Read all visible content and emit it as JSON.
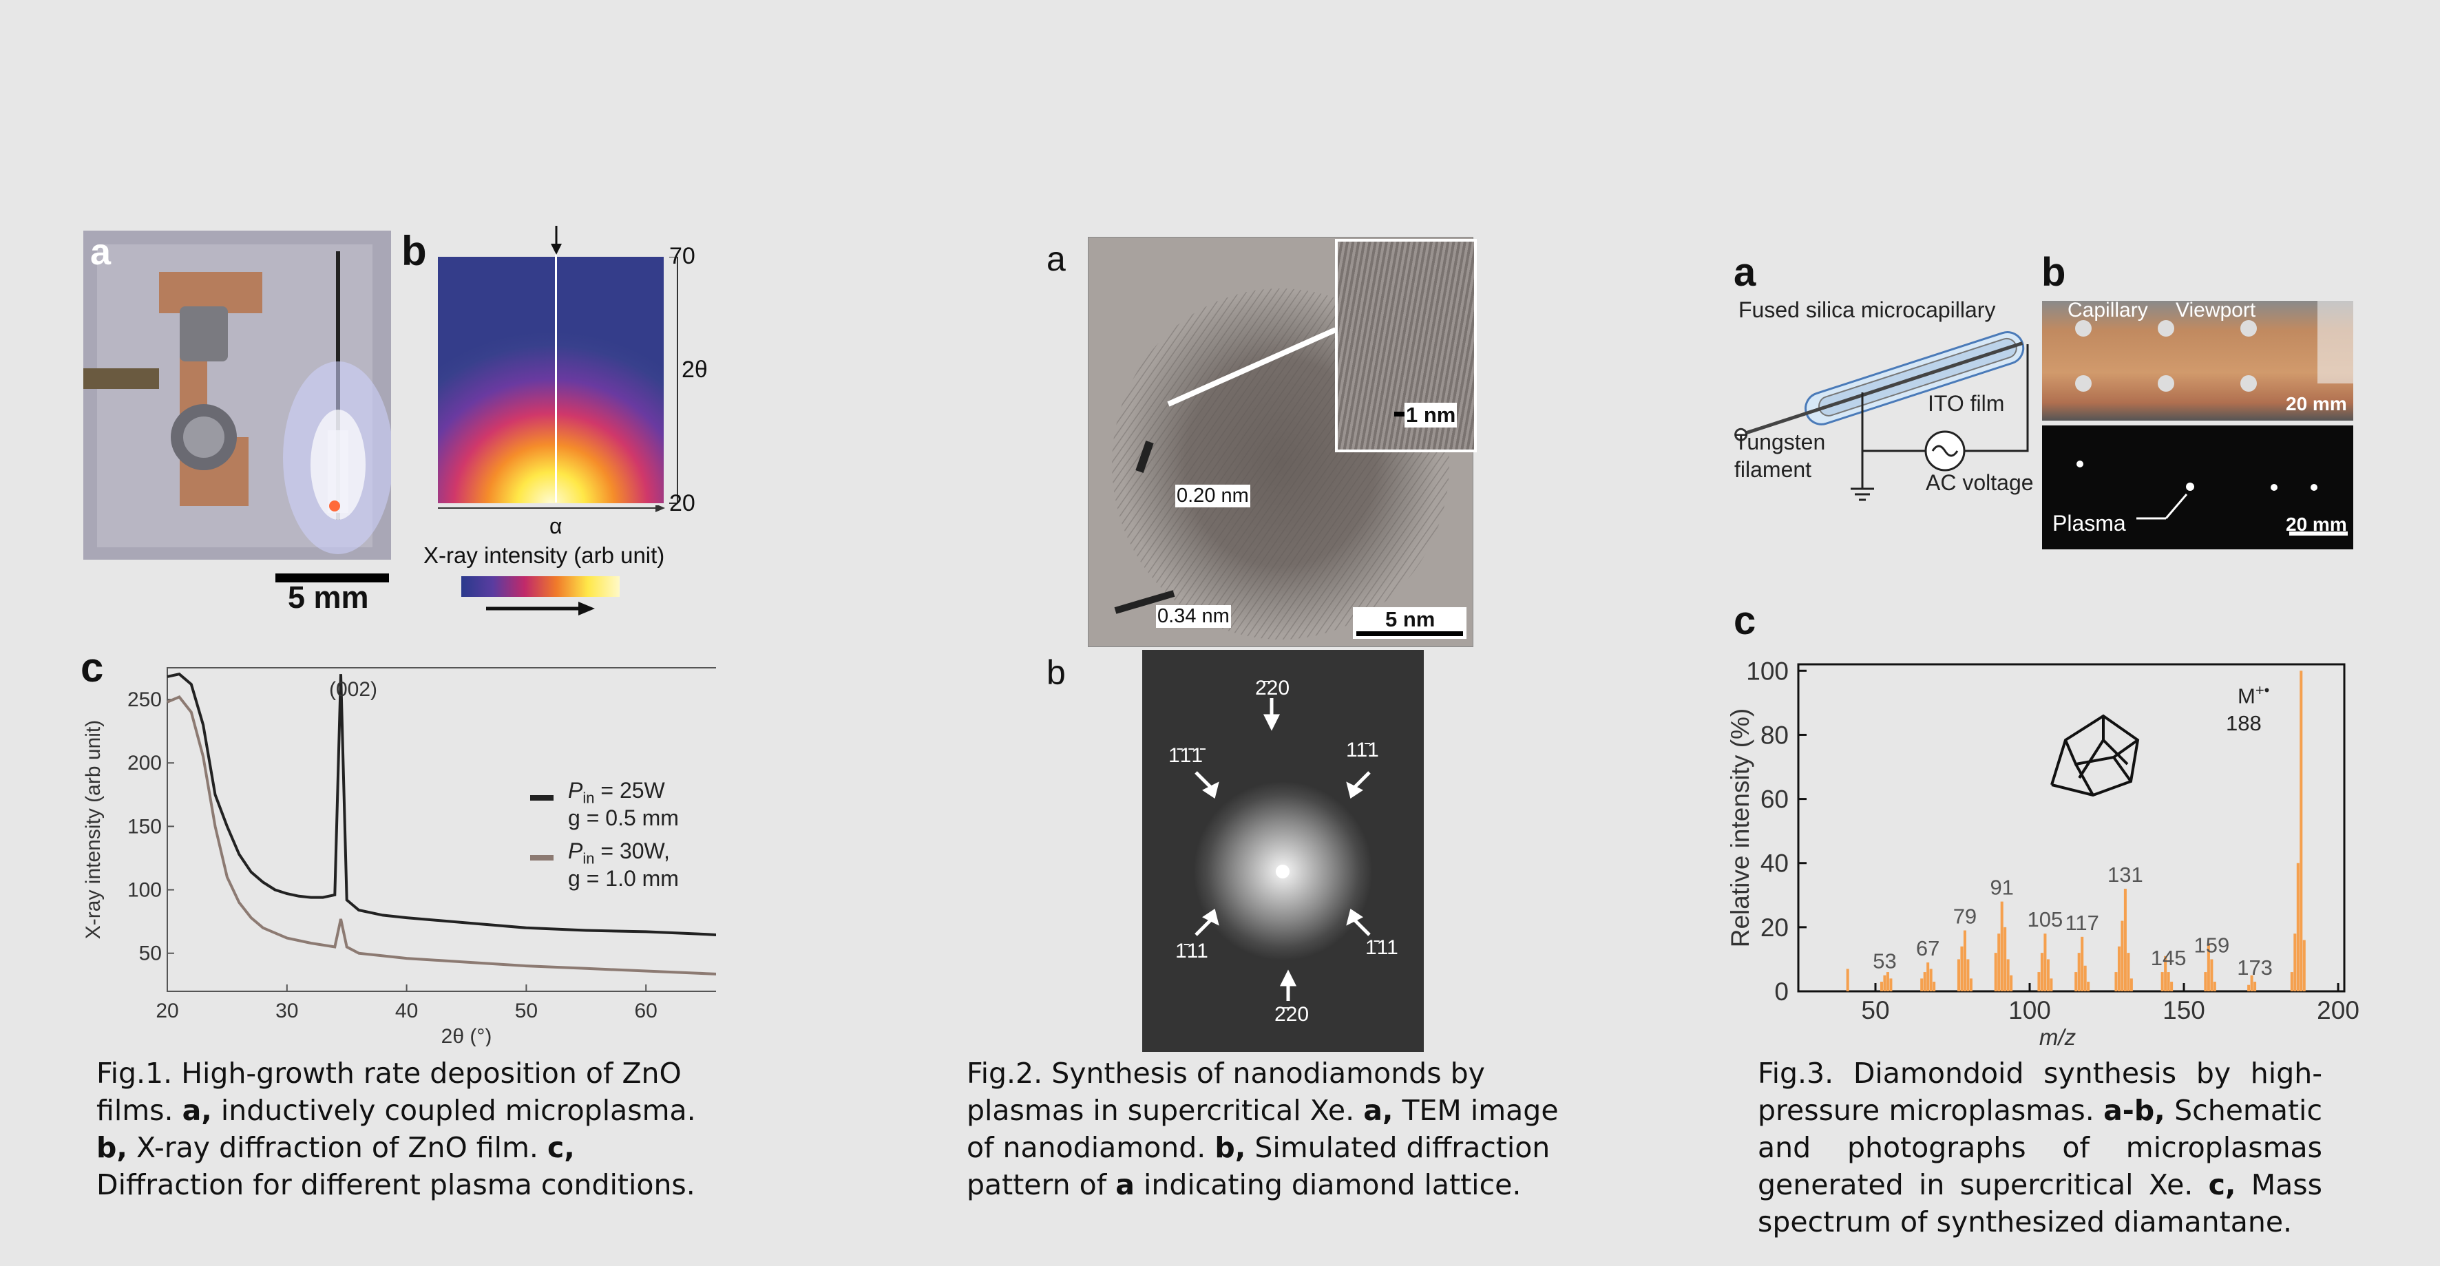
{
  "fig1": {
    "panel_a": {
      "label": "a",
      "scale_bar": "5 mm"
    },
    "panel_b": {
      "label": "b",
      "axis_top": "70",
      "axis_bottom": "20",
      "axis_y_label": "2θ",
      "axis_x_label": "α",
      "colorbar_label": "X-ray intensity (arb unit)",
      "colors": [
        "#2a3a8c",
        "#5a3ca0",
        "#c02a6a",
        "#f07a2a",
        "#ffe84a",
        "#fff9c8"
      ]
    },
    "panel_c": {
      "label": "c",
      "peak_label": "(002)",
      "legend": [
        {
          "p_sym": "P",
          "p_sub": "in",
          "p_val": " = 25W",
          "g": "g = 0.5 mm",
          "color": "#222222"
        },
        {
          "p_sym": "P",
          "p_sub": "in",
          "p_val": " = 30W,",
          "g": "g = 1.0 mm",
          "color": "#8c7a72"
        }
      ]
    },
    "caption_html": "Fig.1. High-growth rate deposition of ZnO films. <b>a,</b> inductively coupled microplasma. <b>b,</b> X-ray diffraction of ZnO film. <b>c,</b> Diffraction for different plasma conditions."
  },
  "fig2": {
    "panel_a": {
      "label": "a",
      "inset_scale": "1 nm",
      "spacing_1": "0.20 nm",
      "spacing_2": "0.34 nm",
      "scale_bar": "5 nm"
    },
    "panel_b": {
      "label": "b",
      "spots": [
        {
          "text": "2̄20"
        },
        {
          "text": "1̄1̄1̄"
        },
        {
          "text": "11̄1"
        },
        {
          "text": "1̄11"
        },
        {
          "text": "1̄11"
        },
        {
          "text": "2̄20"
        }
      ]
    },
    "caption_html": "Fig.2. Synthesis of nanodiamonds by plasmas in supercritical Xe. <b>a,</b> TEM image of nanodiamond. <b>b,</b> Simulated diffraction pattern of <b>a</b> indicating diamond lattice."
  },
  "fig3": {
    "panel_a": {
      "label": "a",
      "capillary_label": "Fused silica microcapillary",
      "ito_label": "ITO film",
      "filament_label": "Tungsten filament",
      "ac_label": "AC voltage"
    },
    "panel_b": {
      "label": "b",
      "capillary": "Capillary",
      "viewport": "Viewport",
      "scale_top": "20 mm",
      "plasma": "Plasma",
      "scale_bottom": "20 mm"
    },
    "panel_c": {
      "label": "c",
      "ion_label": "M",
      "ion_sup": "+•",
      "mass_label": "188",
      "bar_color": "#f5a04e"
    },
    "caption_html": "Fig.3. Diamondoid synthesis by high-pressure microplasmas. <b>a-b,</b> Schematic and photographs of microplasmas generated in supercritical Xe. <b>c,</b> Mass spectrum of synthesized diamantane."
  },
  "chart_data": [
    {
      "type": "line",
      "xlabel": "2θ (°)",
      "ylabel": "X-ray intensity (arb unit)",
      "xlim": [
        20,
        70
      ],
      "ylim": [
        20,
        275
      ],
      "xticks": [
        20,
        30,
        40,
        50,
        60,
        70
      ],
      "yticks": [
        50,
        100,
        150,
        200,
        250
      ],
      "series": [
        {
          "name": "Pin = 25W, g = 0.5 mm",
          "x": [
            20,
            21,
            22,
            23,
            24,
            25,
            26,
            27,
            28,
            29,
            30,
            31,
            32,
            33,
            34,
            34.5,
            35,
            36,
            38,
            40,
            45,
            50,
            55,
            60,
            65,
            70
          ],
          "y": [
            268,
            270,
            262,
            230,
            175,
            150,
            128,
            114,
            106,
            100,
            97,
            95,
            94,
            94,
            96,
            270,
            92,
            84,
            80,
            78,
            74,
            70,
            68,
            67,
            65,
            62
          ]
        },
        {
          "name": "Pin = 30W, g = 1.0 mm",
          "x": [
            20,
            21,
            22,
            23,
            24,
            25,
            26,
            27,
            28,
            29,
            30,
            32,
            34,
            34.5,
            35,
            36,
            38,
            40,
            45,
            50,
            55,
            60,
            65,
            70
          ],
          "y": [
            248,
            252,
            240,
            205,
            150,
            110,
            90,
            78,
            70,
            66,
            62,
            58,
            55,
            77,
            55,
            50,
            48,
            46,
            43,
            40,
            38,
            36,
            34,
            32
          ]
        }
      ]
    },
    {
      "type": "bar",
      "xlabel": "m/z",
      "ylabel": "Relative intensity (%)",
      "xlim": [
        25,
        202
      ],
      "ylim": [
        0,
        102
      ],
      "xticks": [
        50,
        100,
        150,
        200
      ],
      "yticks": [
        0,
        20,
        40,
        60,
        80,
        100
      ],
      "peak_labels": [
        53,
        67,
        79,
        91,
        105,
        117,
        131,
        145,
        159,
        173
      ],
      "x": [
        41,
        52,
        53,
        54,
        55,
        65,
        66,
        67,
        68,
        69,
        77,
        78,
        79,
        80,
        81,
        89,
        90,
        91,
        92,
        93,
        94,
        103,
        104,
        105,
        106,
        107,
        115,
        116,
        117,
        118,
        119,
        128,
        129,
        130,
        131,
        132,
        133,
        143,
        144,
        145,
        146,
        157,
        158,
        159,
        160,
        171,
        172,
        173,
        185,
        186,
        187,
        188,
        189
      ],
      "values": [
        7,
        3,
        5,
        6,
        4,
        4,
        6,
        9,
        7,
        3,
        10,
        14,
        19,
        10,
        4,
        12,
        18,
        28,
        20,
        10,
        5,
        6,
        12,
        18,
        10,
        4,
        6,
        12,
        17,
        8,
        3,
        6,
        14,
        22,
        32,
        12,
        4,
        6,
        11,
        6,
        3,
        6,
        15,
        10,
        3,
        2,
        5,
        3,
        6,
        18,
        40,
        100,
        16
      ]
    }
  ]
}
